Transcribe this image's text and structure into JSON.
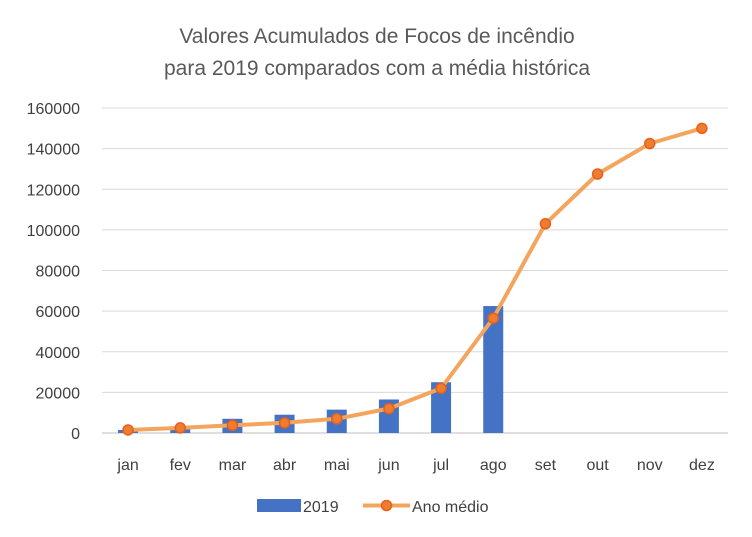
{
  "chart_data": {
    "type": "bar",
    "title": "Valores Acumulados de Focos de incêndio para 2019 comparados com a média histórica",
    "title_lines": [
      "Valores Acumulados de Focos de incêndio",
      "para 2019 comparados com a média histórica"
    ],
    "xlabel": "",
    "ylabel": "",
    "categories": [
      "jan",
      "fev",
      "mar",
      "abr",
      "mai",
      "jun",
      "jul",
      "ago",
      "set",
      "out",
      "nov",
      "dez"
    ],
    "ylim": [
      0,
      160000
    ],
    "yticks": [
      0,
      20000,
      40000,
      60000,
      80000,
      100000,
      120000,
      140000,
      160000
    ],
    "grid": true,
    "legend": "bottom",
    "series": [
      {
        "name": "2019",
        "type": "bar",
        "color": "#4472c4",
        "values": [
          1500,
          2000,
          7000,
          9000,
          11500,
          16500,
          25000,
          62500,
          null,
          null,
          null,
          null
        ]
      },
      {
        "name": "Ano médio",
        "type": "line",
        "color": "#ed7d31",
        "line_color": "#f4a55d",
        "values": [
          1500,
          2500,
          3800,
          5000,
          7000,
          12000,
          22000,
          56500,
          103000,
          127500,
          142500,
          150000
        ]
      }
    ]
  }
}
